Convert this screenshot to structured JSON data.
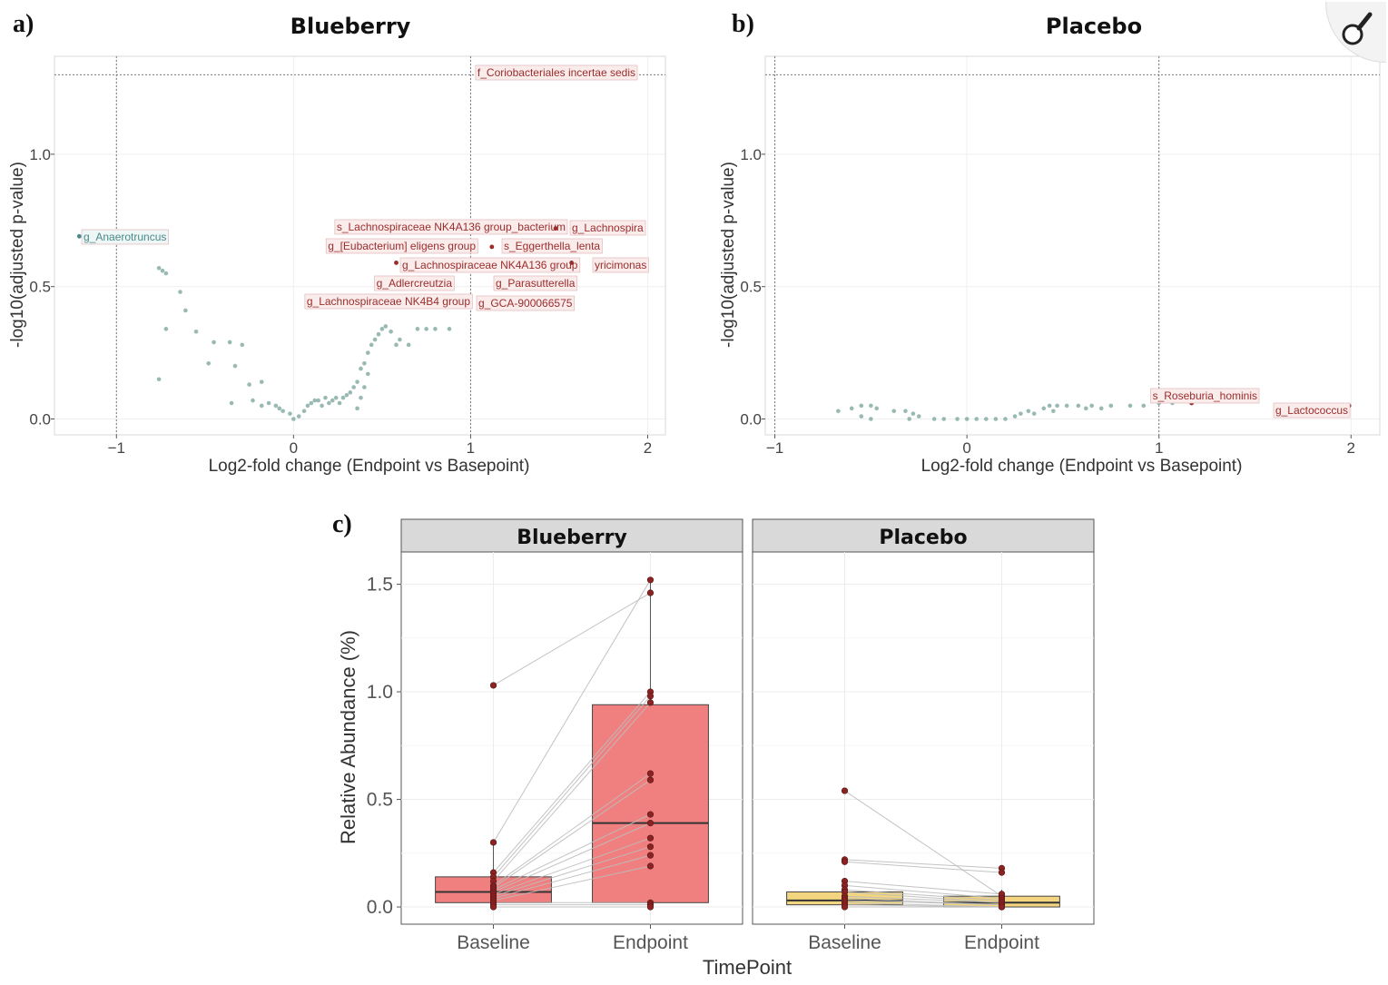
{
  "panels": {
    "a": {
      "letter": "a)",
      "title": "Blueberry"
    },
    "b": {
      "letter": "b)",
      "title": "Placebo"
    },
    "c": {
      "letter": "c)"
    }
  },
  "chart_data": [
    {
      "id": "a",
      "type": "scatter",
      "title": "Blueberry",
      "xlabel": "Log2-fold change (Endpoint vs Basepoint)",
      "ylabel": "-log10(adjusted p-value)",
      "xlim": [
        -1.35,
        2.1
      ],
      "ylim": [
        -0.06,
        1.37
      ],
      "xticks": [
        -1,
        0,
        1,
        2
      ],
      "xtick_labels": [
        "−1",
        "0",
        "1",
        "2"
      ],
      "yticks": [
        0.0,
        0.5,
        1.0
      ],
      "ytick_labels": [
        "0.0",
        "0.5",
        "1.0"
      ],
      "threshold_lines": {
        "x": [
          -1,
          1
        ],
        "y": 1.3
      },
      "grid": true,
      "colors": {
        "point": "#7fa7a0",
        "label_up": "#9b2c2c",
        "label_down": "#4a8a8a",
        "label_bg": "#fbecec",
        "label_bg_down": "#eef6f6"
      },
      "points": [
        [
          -0.76,
          0.57
        ],
        [
          -0.74,
          0.56
        ],
        [
          -0.72,
          0.55
        ],
        [
          -0.64,
          0.48
        ],
        [
          -0.61,
          0.41
        ],
        [
          -0.72,
          0.34
        ],
        [
          -0.55,
          0.33
        ],
        [
          -0.45,
          0.29
        ],
        [
          -0.36,
          0.29
        ],
        [
          -0.29,
          0.28
        ],
        [
          -0.48,
          0.21
        ],
        [
          -0.76,
          0.15
        ],
        [
          -0.33,
          0.2
        ],
        [
          -0.25,
          0.13
        ],
        [
          -0.18,
          0.14
        ],
        [
          -0.35,
          0.06
        ],
        [
          -0.23,
          0.07
        ],
        [
          -0.18,
          0.05
        ],
        [
          -0.14,
          0.06
        ],
        [
          -0.1,
          0.05
        ],
        [
          -0.08,
          0.04
        ],
        [
          -0.06,
          0.03
        ],
        [
          -0.02,
          0.02
        ],
        [
          0.0,
          0.0
        ],
        [
          0.03,
          0.01
        ],
        [
          0.06,
          0.03
        ],
        [
          0.08,
          0.05
        ],
        [
          0.1,
          0.06
        ],
        [
          0.12,
          0.07
        ],
        [
          0.14,
          0.07
        ],
        [
          0.16,
          0.05
        ],
        [
          0.18,
          0.08
        ],
        [
          0.2,
          0.06
        ],
        [
          0.22,
          0.07
        ],
        [
          0.24,
          0.08
        ],
        [
          0.26,
          0.06
        ],
        [
          0.28,
          0.08
        ],
        [
          0.3,
          0.09
        ],
        [
          0.32,
          0.1
        ],
        [
          0.34,
          0.12
        ],
        [
          0.36,
          0.14
        ],
        [
          0.38,
          0.19
        ],
        [
          0.4,
          0.21
        ],
        [
          0.42,
          0.25
        ],
        [
          0.44,
          0.28
        ],
        [
          0.46,
          0.3
        ],
        [
          0.48,
          0.32
        ],
        [
          0.5,
          0.34
        ],
        [
          0.52,
          0.35
        ],
        [
          0.55,
          0.33
        ],
        [
          0.58,
          0.28
        ],
        [
          0.6,
          0.3
        ],
        [
          0.65,
          0.28
        ],
        [
          0.7,
          0.34
        ],
        [
          0.75,
          0.34
        ],
        [
          0.8,
          0.34
        ],
        [
          0.88,
          0.34
        ],
        [
          0.42,
          0.17
        ],
        [
          0.4,
          0.12
        ],
        [
          0.38,
          0.08
        ],
        [
          0.36,
          0.04
        ]
      ],
      "labels": [
        {
          "text": "f_Coriobacteriales incertae sedis",
          "x": 1.9,
          "y": 1.31,
          "dir": "up"
        },
        {
          "text": "g_Anaerotruncus",
          "x": -1.21,
          "y": 0.69,
          "dir": "down"
        },
        {
          "text": "s_Lachnospiraceae NK4A136 group_bacterium",
          "x": 0.65,
          "y": 0.73,
          "dir": "up"
        },
        {
          "text": "g_Lachnospira",
          "x": 1.48,
          "y": 0.72,
          "dir": "up"
        },
        {
          "text": "g_[Eubacterium] eligens group",
          "x": 0.64,
          "y": 0.66,
          "dir": "up"
        },
        {
          "text": "s_Eggerthella_lenta",
          "x": 1.12,
          "y": 0.65,
          "dir": "up"
        },
        {
          "text": "g_Lachnospiraceae NK4A136 group",
          "x": 0.58,
          "y": 0.59,
          "dir": "up"
        },
        {
          "text": "yricimonas",
          "x": 1.57,
          "y": 0.59,
          "dir": "up"
        },
        {
          "text": "g_Adlercreutzia",
          "x": 0.62,
          "y": 0.52,
          "dir": "up"
        },
        {
          "text": "g_Parasutterella",
          "x": 1.22,
          "y": 0.52,
          "dir": "up"
        },
        {
          "text": "g_Lachnospiraceae NK4B4 group",
          "x": 0.86,
          "y": 0.45,
          "dir": "up"
        },
        {
          "text": "g_GCA-900066575",
          "x": 1.05,
          "y": 0.44,
          "dir": "up"
        }
      ]
    },
    {
      "id": "b",
      "type": "scatter",
      "title": "Placebo",
      "xlabel": "Log2-fold change (Endpoint vs Basepoint)",
      "ylabel": "-log10(adjusted p-value)",
      "xlim": [
        -1.05,
        2.15
      ],
      "ylim": [
        -0.06,
        1.37
      ],
      "xticks": [
        -1,
        0,
        1,
        2
      ],
      "xtick_labels": [
        "−1",
        "0",
        "1",
        "2"
      ],
      "yticks": [
        0.0,
        0.5,
        1.0
      ],
      "ytick_labels": [
        "0.0",
        "0.5",
        "1.0"
      ],
      "threshold_lines": {
        "x": [
          -1,
          1
        ],
        "y": 1.3
      },
      "grid": true,
      "colors": {
        "point": "#7fa7a0",
        "label_up": "#9b2c2c",
        "label_bg": "#fbecec"
      },
      "points": [
        [
          -0.67,
          0.03
        ],
        [
          -0.6,
          0.04
        ],
        [
          -0.55,
          0.05
        ],
        [
          -0.5,
          0.05
        ],
        [
          -0.47,
          0.04
        ],
        [
          -0.55,
          0.01
        ],
        [
          -0.5,
          0.0
        ],
        [
          -0.38,
          0.03
        ],
        [
          -0.32,
          0.03
        ],
        [
          -0.28,
          0.02
        ],
        [
          -0.25,
          0.01
        ],
        [
          -0.3,
          0.0
        ],
        [
          -0.17,
          0.0
        ],
        [
          -0.12,
          0.0
        ],
        [
          -0.05,
          0.0
        ],
        [
          0.0,
          0.0
        ],
        [
          0.05,
          0.0
        ],
        [
          0.1,
          0.0
        ],
        [
          0.15,
          0.0
        ],
        [
          0.2,
          0.0
        ],
        [
          0.25,
          0.01
        ],
        [
          0.28,
          0.02
        ],
        [
          0.32,
          0.03
        ],
        [
          0.35,
          0.02
        ],
        [
          0.4,
          0.04
        ],
        [
          0.43,
          0.05
        ],
        [
          0.47,
          0.05
        ],
        [
          0.52,
          0.05
        ],
        [
          0.58,
          0.05
        ],
        [
          0.65,
          0.05
        ],
        [
          0.75,
          0.05
        ],
        [
          0.85,
          0.05
        ],
        [
          0.92,
          0.05
        ],
        [
          1.0,
          0.06
        ],
        [
          1.07,
          0.06
        ],
        [
          0.45,
          0.03
        ],
        [
          0.62,
          0.04
        ],
        [
          0.7,
          0.04
        ]
      ],
      "labels": [
        {
          "text": "s_Roseburia_hominis",
          "x": 1.17,
          "y": 0.06,
          "dir": "up"
        },
        {
          "text": "g_Lactococcus",
          "x": 1.99,
          "y": 0.05,
          "dir": "up"
        }
      ]
    },
    {
      "id": "c",
      "type": "box",
      "ylabel": "Relative Abundance (%)",
      "xlabel": "TimePoint",
      "categories": [
        "Baseline",
        "Endpoint"
      ],
      "ylim": [
        -0.08,
        1.65
      ],
      "yticks": [
        0.0,
        0.5,
        1.0,
        1.5
      ],
      "ytick_labels": [
        "0.0",
        "0.5",
        "1.0",
        "1.5"
      ],
      "facets": [
        {
          "name": "Blueberry",
          "fill": "#f08080",
          "boxes": [
            {
              "q1": 0.02,
              "median": 0.07,
              "q3": 0.14,
              "whisker_low": 0.0,
              "whisker_high": 0.3
            },
            {
              "q1": 0.02,
              "median": 0.39,
              "q3": 0.94,
              "whisker_low": 0.0,
              "whisker_high": 1.52
            }
          ],
          "pairs": [
            [
              1.03,
              1.46
            ],
            [
              0.3,
              1.52
            ],
            [
              0.16,
              1.0
            ],
            [
              0.14,
              0.98
            ],
            [
              0.12,
              0.95
            ],
            [
              0.1,
              0.62
            ],
            [
              0.09,
              0.59
            ],
            [
              0.08,
              0.43
            ],
            [
              0.07,
              0.39
            ],
            [
              0.06,
              0.32
            ],
            [
              0.05,
              0.28
            ],
            [
              0.04,
              0.24
            ],
            [
              0.03,
              0.19
            ],
            [
              0.02,
              0.02
            ],
            [
              0.01,
              0.01
            ],
            [
              0.0,
              0.0
            ]
          ]
        },
        {
          "name": "Placebo",
          "fill": "#f2d57e",
          "boxes": [
            {
              "q1": 0.01,
              "median": 0.03,
              "q3": 0.07,
              "whisker_low": 0.0,
              "whisker_high": 0.12
            },
            {
              "q1": 0.0,
              "median": 0.02,
              "q3": 0.05,
              "whisker_low": 0.0,
              "whisker_high": 0.08
            }
          ],
          "pairs": [
            [
              0.54,
              0.05
            ],
            [
              0.22,
              0.18
            ],
            [
              0.21,
              0.16
            ],
            [
              0.12,
              0.06
            ],
            [
              0.1,
              0.04
            ],
            [
              0.08,
              0.03
            ],
            [
              0.07,
              0.02
            ],
            [
              0.05,
              0.02
            ],
            [
              0.04,
              0.01
            ],
            [
              0.03,
              0.01
            ],
            [
              0.02,
              0.0
            ],
            [
              0.01,
              0.0
            ],
            [
              0.0,
              0.0
            ]
          ]
        }
      ]
    }
  ],
  "toolbar": {
    "zoom_icon": "magnifier-icon"
  }
}
